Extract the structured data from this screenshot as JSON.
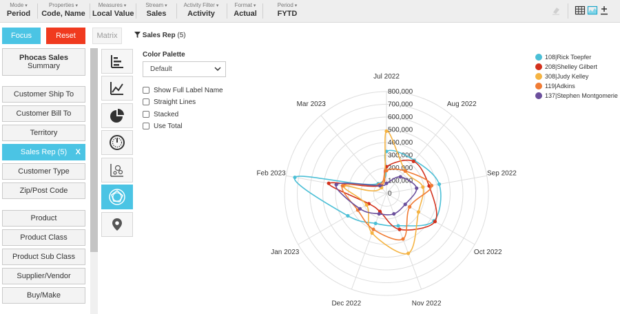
{
  "toolbar": {
    "items": [
      {
        "label": "Mode",
        "value": "Period"
      },
      {
        "label": "Properties",
        "value": "Code, Name"
      },
      {
        "label": "Measures",
        "value": "Local Value"
      },
      {
        "label": "Stream",
        "value": "Sales"
      },
      {
        "label": "Activity Filter",
        "value": "Activity"
      },
      {
        "label": "Format",
        "value": "Actual"
      },
      {
        "label": "Period",
        "value": "FYTD"
      }
    ]
  },
  "buttons": {
    "focus": "Focus",
    "reset": "Reset",
    "matrix": "Matrix"
  },
  "filter": {
    "name": "Sales Rep",
    "count": "(5)"
  },
  "dimensions": {
    "summary_title": "Phocas Sales",
    "summary_sub": "Summary",
    "items": [
      "Customer Ship To",
      "Customer Bill To",
      "Territory",
      "Sales Rep (5)",
      "Customer Type",
      "Zip/Post Code",
      "Product",
      "Product Class",
      "Product Sub Class",
      "Supplier/Vendor",
      "Buy/Make"
    ],
    "active_close": "X"
  },
  "options": {
    "palette_title": "Color Palette",
    "palette_value": "Default",
    "checkboxes": [
      "Show Full Label Name",
      "Straight Lines",
      "Stacked",
      "Use Total"
    ]
  },
  "chart_data": {
    "type": "radar",
    "categories": [
      "Jul 2022",
      "Aug 2022",
      "Sep 2022",
      "Oct 2022",
      "Nov 2022",
      "Dec 2022",
      "Jan 2023",
      "Feb 2023",
      "Mar 2023"
    ],
    "ticks": [
      "0",
      "100,000",
      "200,000",
      "300,000",
      "400,000",
      "500,000",
      "600,000",
      "700,000",
      "800,000"
    ],
    "rmax": 800000,
    "grid": true,
    "legend_position": "top-right",
    "series": [
      {
        "name": "108|Rick Toepfer",
        "color": "#4bbfd6",
        "values": [
          330000,
          340000,
          420000,
          430000,
          270000,
          250000,
          350000,
          730000,
          100000
        ]
      },
      {
        "name": "208|Shelley Gilbert",
        "color": "#d3311c",
        "values": [
          210000,
          330000,
          340000,
          440000,
          300000,
          150000,
          160000,
          460000,
          80000
        ]
      },
      {
        "name": "308|Judy Kelley",
        "color": "#f5b342",
        "values": [
          490000,
          230000,
          290000,
          290000,
          500000,
          330000,
          180000,
          340000,
          60000
        ]
      },
      {
        "name": "119|Adkins",
        "color": "#f07b34",
        "values": [
          180000,
          230000,
          360000,
          210000,
          380000,
          300000,
          260000,
          350000,
          90000
        ]
      },
      {
        "name": "137|Stephen Montgomerie",
        "color": "#6b4f9c",
        "values": [
          80000,
          170000,
          240000,
          170000,
          170000,
          170000,
          240000,
          400000,
          80000
        ]
      }
    ]
  }
}
